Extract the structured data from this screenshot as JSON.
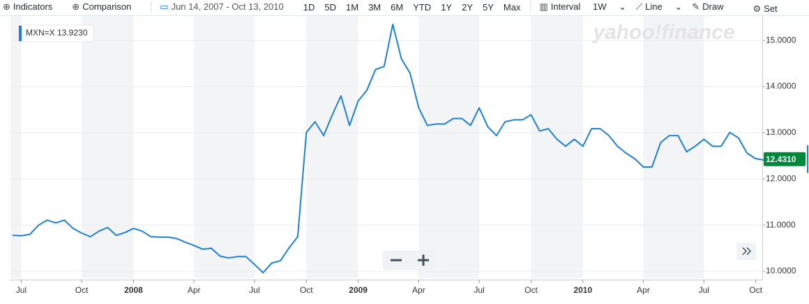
{
  "toolbar": {
    "indicators": "Indicators",
    "comparison": "Comparison",
    "date_range": "Jun 14, 2007 - Oct 13, 2010",
    "ranges": [
      "1D",
      "5D",
      "1M",
      "3M",
      "6M",
      "YTD",
      "1Y",
      "2Y",
      "5Y",
      "Max"
    ],
    "interval": "Interval",
    "interval_value": "1W",
    "chart_type": "Line",
    "draw": "Draw",
    "settings": "Set"
  },
  "watermark": "yahoo!finance",
  "chart_data": {
    "type": "line",
    "legend_value": {
      "value": 13.923,
      "label": "13.9230"
    },
    "last_value": {
      "value": 12.431,
      "label": "12.4310"
    },
    "categories": [
      null,
      "Jul",
      null,
      null,
      null,
      null,
      null,
      null,
      "Oct",
      null,
      null,
      null,
      null,
      null,
      "2008",
      null,
      null,
      null,
      null,
      null,
      null,
      "Apr",
      null,
      null,
      null,
      null,
      null,
      null,
      "Jul",
      null,
      null,
      null,
      null,
      null,
      "Oct",
      null,
      null,
      null,
      null,
      null,
      "2009",
      null,
      null,
      null,
      null,
      null,
      null,
      "Apr",
      null,
      null,
      null,
      null,
      null,
      null,
      "Jul",
      null,
      null,
      null,
      null,
      null,
      "Oct",
      null,
      null,
      null,
      null,
      null,
      "2010",
      null,
      null,
      null,
      null,
      null,
      null,
      "Apr",
      null,
      null,
      null,
      null,
      null,
      null,
      "Jul",
      null,
      null,
      null,
      null,
      null,
      "Oct",
      null
    ],
    "series": [
      {
        "name": "MXN=X",
        "color": "#1d7fd6",
        "values": [
          10.78,
          10.77,
          10.8,
          11.0,
          11.11,
          11.05,
          11.11,
          10.93,
          10.83,
          10.75,
          10.87,
          10.95,
          10.78,
          10.84,
          10.93,
          10.87,
          10.75,
          10.74,
          10.74,
          10.71,
          10.63,
          10.56,
          10.48,
          10.5,
          10.33,
          10.29,
          10.32,
          10.32,
          10.15,
          9.97,
          10.18,
          10.23,
          10.51,
          10.75,
          13.01,
          13.24,
          12.94,
          13.39,
          13.8,
          13.16,
          13.69,
          13.92,
          14.37,
          14.44,
          15.35,
          14.6,
          14.29,
          13.54,
          13.16,
          13.19,
          13.19,
          13.31,
          13.31,
          13.16,
          13.54,
          13.13,
          12.94,
          13.24,
          13.28,
          13.28,
          13.39,
          13.04,
          13.09,
          12.86,
          12.71,
          12.86,
          12.71,
          13.09,
          13.09,
          12.94,
          12.71,
          12.56,
          12.44,
          12.26,
          12.26,
          12.79,
          12.94,
          12.94,
          12.59,
          12.71,
          12.86,
          12.71,
          12.71,
          13.01,
          12.89,
          12.56,
          12.44,
          12.41
        ]
      }
    ],
    "ylim": [
      9.85,
      15.5
    ],
    "yticks": [
      {
        "value": 10,
        "label": "10.0000"
      },
      {
        "value": 11,
        "label": "11.0000"
      },
      {
        "value": 12,
        "label": "12.0000"
      },
      {
        "value": 13,
        "label": "13.0000"
      },
      {
        "value": 14,
        "label": "14.0000"
      },
      {
        "value": 15,
        "label": "15.0000"
      }
    ],
    "grid": true
  }
}
